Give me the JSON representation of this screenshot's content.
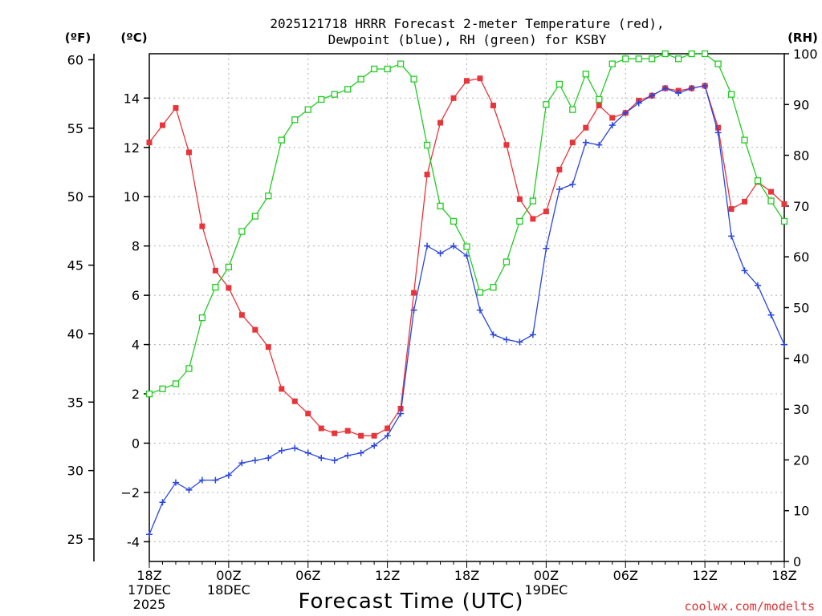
{
  "chart_data": {
    "type": "line",
    "title_line1": "2025121718 HRRR Forecast 2-meter Temperature (red),",
    "title_line2": "Dewpoint (blue), RH (green) for KSBY",
    "xlabel": "Forecast Time (UTC)",
    "credit": "coolwx.com/modelts",
    "units": {
      "fahrenheit": "(ºF)",
      "celsius": "(ºC)",
      "rh": "(RH)"
    },
    "x_range_hours": [
      0,
      48
    ],
    "y_celsius_range": [
      -4.8,
      15.8
    ],
    "y_rh_range": [
      0,
      100
    ],
    "x_ticks": [
      {
        "hour": 0,
        "lines": [
          "18Z",
          "17DEC",
          "2025"
        ]
      },
      {
        "hour": 6,
        "lines": [
          "00Z",
          "18DEC"
        ]
      },
      {
        "hour": 12,
        "lines": [
          "06Z"
        ]
      },
      {
        "hour": 18,
        "lines": [
          "12Z"
        ]
      },
      {
        "hour": 24,
        "lines": [
          "18Z"
        ]
      },
      {
        "hour": 30,
        "lines": [
          "00Z",
          "19DEC"
        ]
      },
      {
        "hour": 36,
        "lines": [
          "06Z"
        ]
      },
      {
        "hour": 42,
        "lines": [
          "12Z"
        ]
      },
      {
        "hour": 48,
        "lines": [
          "18Z"
        ]
      }
    ],
    "y_celsius_ticks": [
      "-4",
      "−2",
      "0",
      "2",
      "4",
      "6",
      "8",
      "10",
      "12",
      "14"
    ],
    "y_celsius_tick_values": [
      -4,
      -2,
      0,
      2,
      4,
      6,
      8,
      10,
      12,
      14
    ],
    "y_fahrenheit_ticks": [
      "25",
      "30",
      "35",
      "40",
      "45",
      "50",
      "55",
      "60"
    ],
    "y_fahrenheit_tick_values": [
      25,
      30,
      35,
      40,
      45,
      50,
      55,
      60
    ],
    "y_rh_ticks": [
      "0",
      "10",
      "20",
      "30",
      "40",
      "50",
      "60",
      "70",
      "80",
      "90",
      "100"
    ],
    "y_rh_tick_values": [
      0,
      10,
      20,
      30,
      40,
      50,
      60,
      70,
      80,
      90,
      100
    ],
    "series": [
      {
        "name": "Temperature",
        "axis": "celsius",
        "color": "#e8353a",
        "marker": "filled-square",
        "values": [
          12.2,
          12.9,
          13.6,
          11.8,
          8.8,
          7.0,
          6.3,
          5.2,
          4.6,
          3.9,
          2.2,
          1.7,
          1.2,
          0.6,
          0.4,
          0.5,
          0.3,
          0.3,
          0.6,
          1.4,
          6.1,
          10.9,
          13.0,
          14.0,
          14.7,
          14.8,
          13.7,
          12.1,
          9.9,
          9.1,
          9.4,
          11.1,
          12.2,
          12.8,
          13.7,
          13.2,
          13.4,
          13.9,
          14.1,
          14.4,
          14.3,
          14.4,
          14.5,
          12.8,
          9.5,
          9.8,
          10.6,
          10.2,
          9.7
        ]
      },
      {
        "name": "Dewpoint",
        "axis": "celsius",
        "color": "#2a46e0",
        "marker": "plus",
        "values": [
          -3.7,
          -2.4,
          -1.6,
          -1.9,
          -1.5,
          -1.5,
          -1.3,
          -0.8,
          -0.7,
          -0.6,
          -0.3,
          -0.2,
          -0.4,
          -0.6,
          -0.7,
          -0.5,
          -0.4,
          -0.1,
          0.3,
          1.2,
          5.4,
          8.0,
          7.7,
          8.0,
          7.6,
          5.4,
          4.4,
          4.2,
          4.1,
          4.4,
          7.9,
          10.3,
          10.5,
          12.2,
          12.1,
          12.9,
          13.4,
          13.8,
          14.1,
          14.4,
          14.2,
          14.4,
          14.5,
          12.6,
          8.4,
          7.0,
          6.4,
          5.2,
          4.0
        ]
      },
      {
        "name": "RH",
        "axis": "rh",
        "color": "#22cc22",
        "marker": "open-square",
        "values": [
          33,
          34,
          35,
          38,
          48,
          54,
          58,
          65,
          68,
          72,
          83,
          87,
          89,
          91,
          92,
          93,
          95,
          97,
          97,
          98,
          95,
          82,
          70,
          67,
          62,
          53,
          54,
          59,
          67,
          71,
          90,
          94,
          89,
          96,
          91,
          98,
          99,
          99,
          99,
          100,
          99,
          100,
          100,
          98,
          92,
          83,
          75,
          71,
          67
        ]
      }
    ]
  }
}
